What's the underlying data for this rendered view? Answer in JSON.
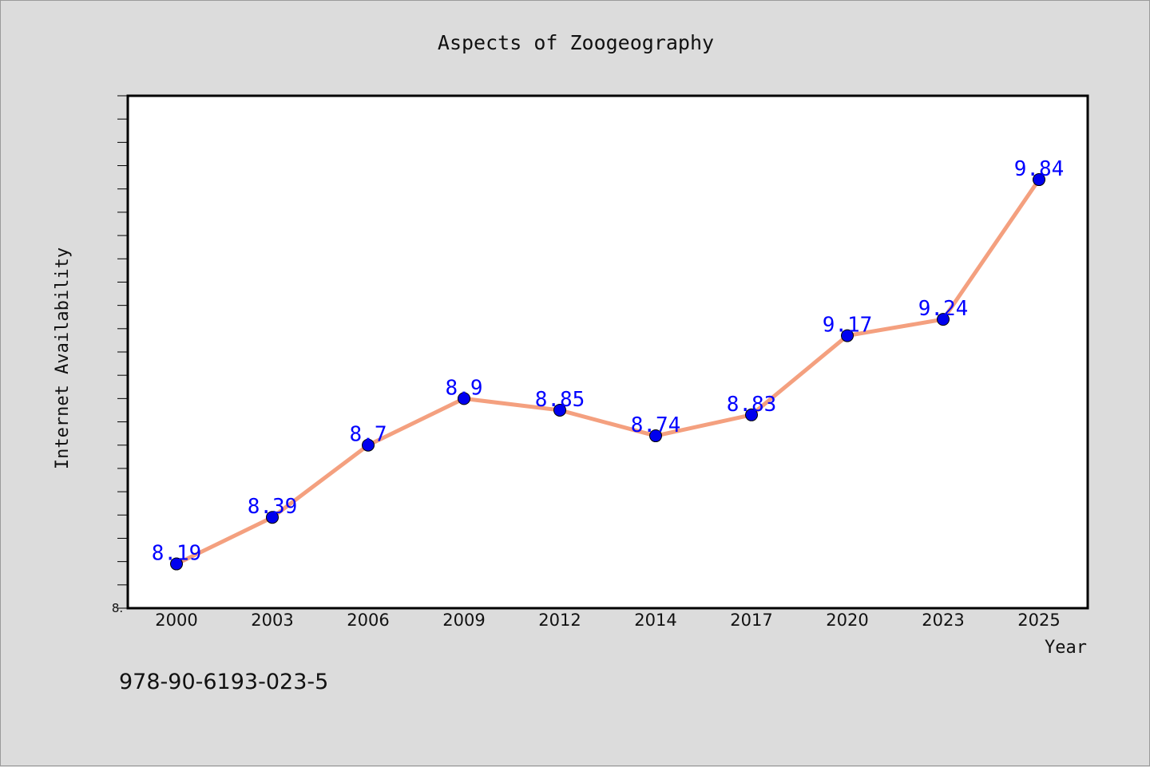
{
  "chart_data": {
    "type": "line",
    "title": "Aspects of Zoogeography",
    "xlabel": "Year",
    "ylabel": "Internet Availability",
    "categories": [
      "2000",
      "2003",
      "2006",
      "2009",
      "2012",
      "2014",
      "2017",
      "2020",
      "2023",
      "2025"
    ],
    "series": [
      {
        "values": [
          8.19,
          8.39,
          8.7,
          8.9,
          8.85,
          8.74,
          8.83,
          9.17,
          9.24,
          9.84
        ]
      }
    ],
    "data_labels": [
      "8.19",
      "8.39",
      "8.7",
      "8.9",
      "8.85",
      "8.74",
      "8.83",
      "9.17",
      "9.24",
      "9.84"
    ],
    "ylim": [
      8.0,
      10.2
    ],
    "ytick_label": "8.",
    "grid": false,
    "legend": "none",
    "line_color": "#f4a07f",
    "marker_color": "#0000ee",
    "label_color": "#0000ff",
    "plot_background": "#ffffff",
    "page_background": "#dcdcdc"
  },
  "footer": {
    "isbn": "978-90-6193-023-5"
  }
}
